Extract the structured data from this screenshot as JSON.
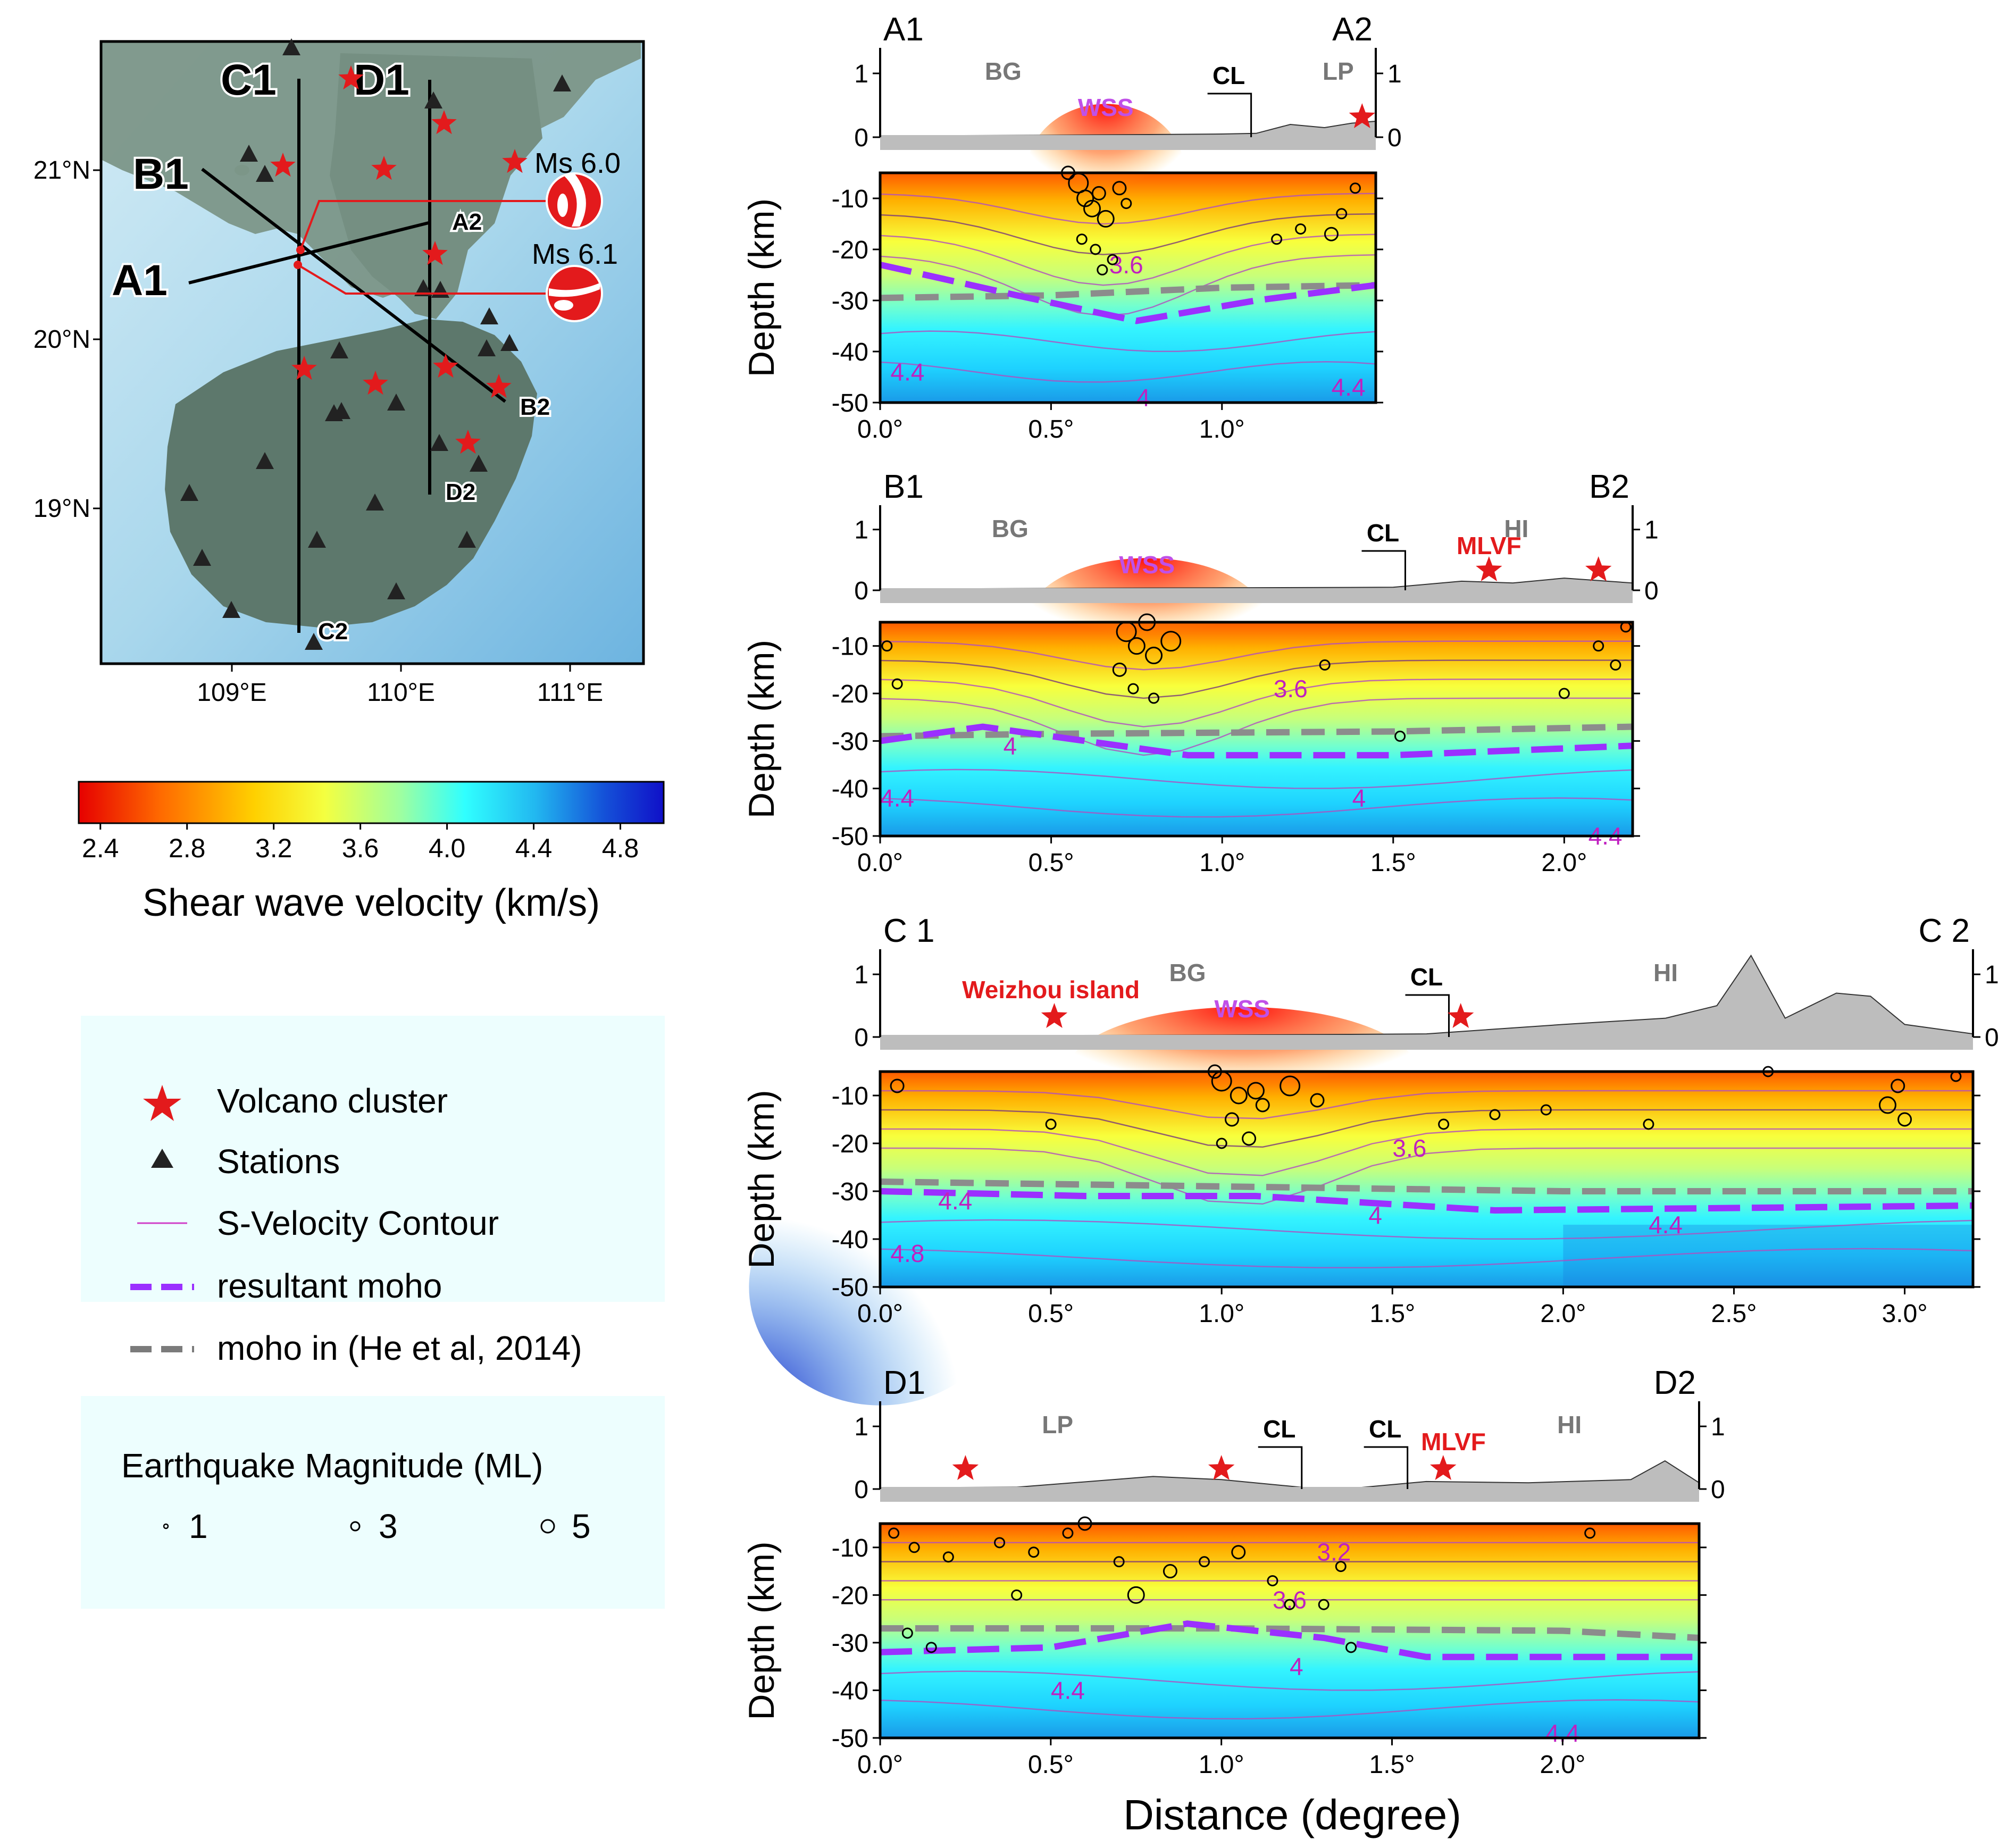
{
  "map": {
    "lat_labels": [
      "21°N",
      "20°N",
      "19°N"
    ],
    "lon_labels": [
      "109°E",
      "110°E",
      "111°E"
    ],
    "profile_labels": {
      "A1": "A1",
      "A2": "A2",
      "B1": "B1",
      "B2": "B2",
      "C1": "C1",
      "C2": "C2",
      "D1": "D1",
      "D2": "D2"
    },
    "events": [
      {
        "label": "Ms 6.0"
      },
      {
        "label": "Ms 6.1"
      }
    ],
    "colors": {
      "sea": "#9dd0e8",
      "land": "#6f8a7e",
      "profile": "#000000",
      "event": "#e31a1c"
    }
  },
  "colorbar": {
    "title": "Shear wave velocity (km/s)",
    "ticks": [
      "2.4",
      "2.8",
      "3.2",
      "3.6",
      "4.0",
      "4.4",
      "4.8"
    ],
    "range": [
      2.3,
      5.0
    ]
  },
  "legend": {
    "items": [
      {
        "icon": "red-star-icon",
        "label": "Volcano cluster"
      },
      {
        "icon": "black-triangle-icon",
        "label": "Stations"
      },
      {
        "icon": "thin-magenta-line-icon",
        "label": "S-Velocity Contour"
      },
      {
        "icon": "purple-dashed-line-icon",
        "label": "resultant moho"
      },
      {
        "icon": "gray-dashed-line-icon",
        "label": "moho in (He et al, 2014)"
      }
    ],
    "magnitude_title": "Earthquake Magnitude (ML)",
    "magnitudes": [
      "1",
      "3",
      "5"
    ]
  },
  "x_axis_title": "Distance (degree)",
  "chart_data": [
    {
      "type": "cross-section",
      "title_left": "A1",
      "title_right": "A2",
      "xlim": [
        0,
        1.45
      ],
      "xticks": [
        "0.0°",
        "0.5°",
        "1.0°"
      ],
      "ylabel": "Depth (km)",
      "ylim": [
        -50,
        -5
      ],
      "yticks": [
        "-10",
        "-20",
        "-30",
        "-40",
        "-50"
      ],
      "topo_ticks": [
        "1",
        "0"
      ],
      "region_labels": [
        {
          "text": "BG",
          "x": 0.36
        },
        {
          "text": "LP",
          "x": 1.34
        }
      ],
      "wss_label": {
        "text": "WSS",
        "x": 0.66
      },
      "cl_label": {
        "text": "CL",
        "x": 1.02
      },
      "volcano_labels": [],
      "volcanoes": [
        1.41
      ],
      "topo": [
        [
          0,
          0.02
        ],
        [
          0.5,
          0.03
        ],
        [
          1.0,
          0.05
        ],
        [
          1.1,
          0.06
        ],
        [
          1.2,
          0.2
        ],
        [
          1.3,
          0.15
        ],
        [
          1.38,
          0.22
        ],
        [
          1.45,
          0.25
        ]
      ],
      "contour_labels": [
        {
          "text": "3.6",
          "x": 0.72,
          "y": -23
        },
        {
          "text": "4",
          "x": 0.77,
          "y": -49
        },
        {
          "text": "4.4",
          "x": 0.08,
          "y": -44
        },
        {
          "text": "4.4",
          "x": 1.37,
          "y": -47
        }
      ],
      "resultant_moho": [
        [
          0,
          -23
        ],
        [
          0.4,
          -29
        ],
        [
          0.75,
          -34
        ],
        [
          1.1,
          -30
        ],
        [
          1.45,
          -27
        ]
      ],
      "he_moho": [
        [
          0,
          -29.5
        ],
        [
          0.5,
          -29
        ],
        [
          1.0,
          -27.5
        ],
        [
          1.45,
          -27
        ]
      ],
      "quakes": [
        [
          0.58,
          -7,
          5
        ],
        [
          0.6,
          -10,
          4
        ],
        [
          0.62,
          -12,
          4
        ],
        [
          0.64,
          -9,
          3
        ],
        [
          0.66,
          -14,
          4
        ],
        [
          0.59,
          -18,
          2
        ],
        [
          0.63,
          -20,
          2
        ],
        [
          0.68,
          -22,
          2
        ],
        [
          0.55,
          -5,
          3
        ],
        [
          0.7,
          -8,
          3
        ],
        [
          0.72,
          -11,
          2
        ],
        [
          0.65,
          -24,
          2
        ],
        [
          1.16,
          -18,
          2
        ],
        [
          1.23,
          -16,
          2
        ],
        [
          1.32,
          -17,
          3
        ],
        [
          1.35,
          -13,
          2
        ],
        [
          1.39,
          -8,
          2
        ]
      ]
    },
    {
      "type": "cross-section",
      "title_left": "B1",
      "title_right": "B2",
      "xlim": [
        0,
        2.2
      ],
      "xticks": [
        "0.0°",
        "0.5°",
        "1.0°",
        "1.5°",
        "2.0°"
      ],
      "ylabel": "Depth (km)",
      "ylim": [
        -50,
        -5
      ],
      "yticks": [
        "-10",
        "-20",
        "-30",
        "-40",
        "-50"
      ],
      "topo_ticks": [
        "1",
        "0"
      ],
      "region_labels": [
        {
          "text": "BG",
          "x": 0.38
        },
        {
          "text": "HI",
          "x": 1.86
        }
      ],
      "wss_label": {
        "text": "WSS",
        "x": 0.78
      },
      "cl_label": {
        "text": "CL",
        "x": 1.47
      },
      "volcano_labels": [
        {
          "text": "MLVF",
          "x": 1.78
        }
      ],
      "volcanoes": [
        1.78,
        2.1
      ],
      "topo": [
        [
          0,
          0.02
        ],
        [
          1.0,
          0.04
        ],
        [
          1.5,
          0.05
        ],
        [
          1.7,
          0.15
        ],
        [
          1.85,
          0.12
        ],
        [
          2.0,
          0.2
        ],
        [
          2.2,
          0.12
        ]
      ],
      "contour_labels": [
        {
          "text": "3.6",
          "x": 1.2,
          "y": -19
        },
        {
          "text": "4",
          "x": 0.38,
          "y": -31
        },
        {
          "text": "4",
          "x": 1.4,
          "y": -42
        },
        {
          "text": "4.4",
          "x": 0.05,
          "y": -42
        },
        {
          "text": "4.4",
          "x": 2.12,
          "y": -50
        }
      ],
      "resultant_moho": [
        [
          0,
          -30
        ],
        [
          0.3,
          -27
        ],
        [
          0.9,
          -33
        ],
        [
          1.5,
          -33
        ],
        [
          2.2,
          -31
        ]
      ],
      "he_moho": [
        [
          0,
          -29
        ],
        [
          0.5,
          -28.5
        ],
        [
          1.5,
          -28
        ],
        [
          2.2,
          -27
        ]
      ],
      "quakes": [
        [
          0.72,
          -7,
          5
        ],
        [
          0.75,
          -10,
          4
        ],
        [
          0.8,
          -12,
          4
        ],
        [
          0.78,
          -5,
          4
        ],
        [
          0.85,
          -9,
          5
        ],
        [
          0.7,
          -15,
          3
        ],
        [
          0.74,
          -19,
          2
        ],
        [
          0.8,
          -21,
          2
        ],
        [
          1.3,
          -14,
          2
        ],
        [
          1.52,
          -29,
          2
        ],
        [
          2.1,
          -10,
          2
        ],
        [
          2.15,
          -14,
          2
        ],
        [
          2.18,
          -6,
          2
        ],
        [
          0.02,
          -10,
          2
        ],
        [
          0.05,
          -18,
          2
        ],
        [
          2.0,
          -20,
          2
        ]
      ]
    },
    {
      "type": "cross-section",
      "title_left": "C 1",
      "title_right": "C 2",
      "xlim": [
        0,
        3.2
      ],
      "xticks": [
        "0.0°",
        "0.5°",
        "1.0°",
        "1.5°",
        "2.0°",
        "2.5°",
        "3.0°"
      ],
      "ylabel": "Depth (km)",
      "ylim": [
        -50,
        -5
      ],
      "yticks": [
        "-10",
        "-20",
        "-30",
        "-40",
        "-50"
      ],
      "topo_ticks": [
        "1",
        "0"
      ],
      "region_labels": [
        {
          "text": "BG",
          "x": 0.9
        },
        {
          "text": "HI",
          "x": 2.3
        }
      ],
      "wss_label": {
        "text": "WSS",
        "x": 1.06
      },
      "cl_label": {
        "text": "CL",
        "x": 1.6
      },
      "volcano_labels": [
        {
          "text": "Weizhou island",
          "x": 0.5
        }
      ],
      "volcanoes": [
        0.51,
        1.7
      ],
      "topo": [
        [
          0,
          0.02
        ],
        [
          1.0,
          0.03
        ],
        [
          1.6,
          0.05
        ],
        [
          2.0,
          0.2
        ],
        [
          2.3,
          0.3
        ],
        [
          2.45,
          0.5
        ],
        [
          2.55,
          1.3
        ],
        [
          2.65,
          0.3
        ],
        [
          2.8,
          0.7
        ],
        [
          2.9,
          0.65
        ],
        [
          3.0,
          0.2
        ],
        [
          3.2,
          0.05
        ]
      ],
      "contour_labels": [
        {
          "text": "3.6",
          "x": 1.55,
          "y": -21
        },
        {
          "text": "4",
          "x": 1.45,
          "y": -35
        },
        {
          "text": "4.4",
          "x": 0.22,
          "y": -32
        },
        {
          "text": "4.4",
          "x": 2.3,
          "y": -37
        },
        {
          "text": "4.8",
          "x": 0.08,
          "y": -43
        }
      ],
      "resultant_moho": [
        [
          0,
          -30
        ],
        [
          0.6,
          -31
        ],
        [
          1.1,
          -31
        ],
        [
          1.8,
          -34
        ],
        [
          3.2,
          -33
        ]
      ],
      "he_moho": [
        [
          0,
          -28
        ],
        [
          1.0,
          -29
        ],
        [
          2.0,
          -30
        ],
        [
          3.2,
          -30
        ]
      ],
      "quakes": [
        [
          1.0,
          -7,
          5
        ],
        [
          1.05,
          -10,
          4
        ],
        [
          1.1,
          -9,
          4
        ],
        [
          1.03,
          -15,
          3
        ],
        [
          1.08,
          -19,
          3
        ],
        [
          1.12,
          -12,
          3
        ],
        [
          1.2,
          -8,
          5
        ],
        [
          1.0,
          -20,
          2
        ],
        [
          0.98,
          -5,
          3
        ],
        [
          1.28,
          -11,
          3
        ],
        [
          0.05,
          -8,
          3
        ],
        [
          0.5,
          -16,
          2
        ],
        [
          1.65,
          -16,
          2
        ],
        [
          1.8,
          -14,
          2
        ],
        [
          1.95,
          -13,
          2
        ],
        [
          2.95,
          -12,
          4
        ],
        [
          2.98,
          -8,
          3
        ],
        [
          3.0,
          -15,
          3
        ],
        [
          2.25,
          -16,
          2
        ],
        [
          2.6,
          -5,
          2
        ],
        [
          3.15,
          -6,
          2
        ]
      ]
    },
    {
      "type": "cross-section",
      "title_left": "D1",
      "title_right": "D2",
      "xlim": [
        0,
        2.4
      ],
      "xticks": [
        "0.0°",
        "0.5°",
        "1.0°",
        "1.5°",
        "2.0°"
      ],
      "ylabel": "Depth (km)",
      "ylim": [
        -50,
        -5
      ],
      "yticks": [
        "-10",
        "-20",
        "-30",
        "-40",
        "-50"
      ],
      "topo_ticks": [
        "1",
        "0"
      ],
      "region_labels": [
        {
          "text": "LP",
          "x": 0.52
        },
        {
          "text": "HI",
          "x": 2.02
        }
      ],
      "wss_label": null,
      "cl_label": null,
      "cl_labels": [
        {
          "text": "CL",
          "x": 1.17
        },
        {
          "text": "CL",
          "x": 1.48
        }
      ],
      "volcano_labels": [
        {
          "text": "MLVF",
          "x": 1.68
        }
      ],
      "volcanoes": [
        0.25,
        1.0,
        1.65
      ],
      "topo": [
        [
          0,
          0.02
        ],
        [
          0.4,
          0.03
        ],
        [
          0.8,
          0.2
        ],
        [
          1.0,
          0.15
        ],
        [
          1.25,
          0.02
        ],
        [
          1.4,
          0.02
        ],
        [
          1.6,
          0.12
        ],
        [
          1.9,
          0.1
        ],
        [
          2.2,
          0.15
        ],
        [
          2.3,
          0.45
        ],
        [
          2.4,
          0.1
        ]
      ],
      "contour_labels": [
        {
          "text": "3.2",
          "x": 1.33,
          "y": -11
        },
        {
          "text": "3.6",
          "x": 1.2,
          "y": -21
        },
        {
          "text": "4",
          "x": 1.22,
          "y": -35
        },
        {
          "text": "4.4",
          "x": 0.55,
          "y": -40
        },
        {
          "text": "4.4",
          "x": 2.0,
          "y": -49
        }
      ],
      "resultant_moho": [
        [
          0,
          -32
        ],
        [
          0.5,
          -31
        ],
        [
          0.9,
          -26
        ],
        [
          1.3,
          -29
        ],
        [
          1.6,
          -33
        ],
        [
          2.4,
          -33
        ]
      ],
      "he_moho": [
        [
          0,
          -27
        ],
        [
          1.0,
          -27
        ],
        [
          2.0,
          -27.5
        ],
        [
          2.4,
          -29
        ]
      ],
      "quakes": [
        [
          0.04,
          -7,
          2
        ],
        [
          0.1,
          -10,
          2
        ],
        [
          0.2,
          -12,
          2
        ],
        [
          0.35,
          -9,
          2
        ],
        [
          0.45,
          -11,
          2
        ],
        [
          0.55,
          -7,
          2
        ],
        [
          0.6,
          -5,
          3
        ],
        [
          0.7,
          -13,
          2
        ],
        [
          0.85,
          -15,
          3
        ],
        [
          0.95,
          -13,
          2
        ],
        [
          1.05,
          -11,
          3
        ],
        [
          1.15,
          -17,
          2
        ],
        [
          1.2,
          -22,
          2
        ],
        [
          1.3,
          -22,
          2
        ],
        [
          1.35,
          -14,
          2
        ],
        [
          0.08,
          -28,
          2
        ],
        [
          0.15,
          -31,
          2
        ],
        [
          0.75,
          -20,
          4
        ],
        [
          0.4,
          -20,
          2
        ],
        [
          1.38,
          -31,
          2
        ],
        [
          2.08,
          -7,
          2
        ]
      ]
    }
  ]
}
